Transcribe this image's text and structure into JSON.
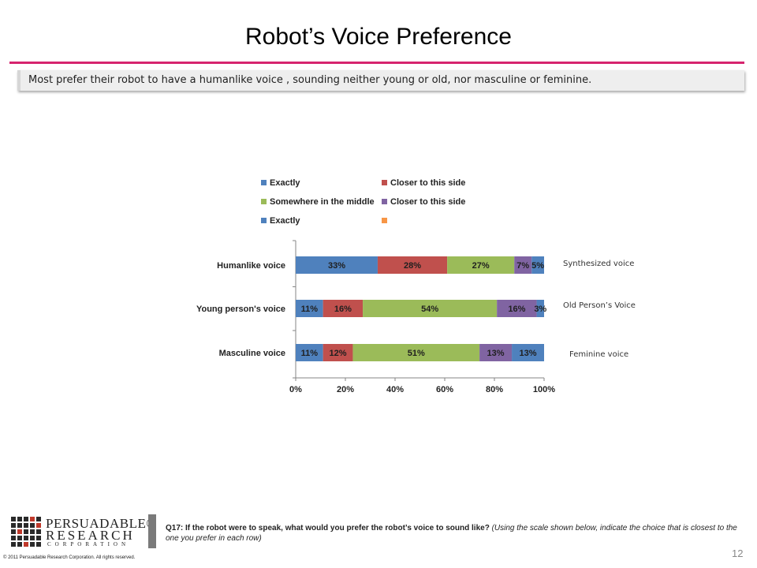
{
  "slide": {
    "title": "Robot’s Voice Preference",
    "summary": "Most prefer their robot to have a humanlike voice , sounding neither young or old, nor masculine or feminine.",
    "page_number": "12",
    "accent_color": "#d6246e"
  },
  "footer": {
    "logo_line1": "PERSUADABLE®",
    "logo_line2": "RESEARCH",
    "logo_line3": "CORPORATION",
    "question_label": "Q17:  If the robot were to speak, what would you prefer the robot’s voice to sound like?",
    "question_instruction": "(Using the scale shown below, indicate the choice that is closest to the one you prefer in each row)",
    "copyright": "© 2011  Persuadable  Research Corporation.   All rights reserved."
  },
  "chart_data": {
    "type": "bar",
    "orientation": "horizontal",
    "stacked": true,
    "percent": true,
    "categories": [
      "Humanlike voice",
      "Young person's voice",
      "Masculine voice"
    ],
    "right_labels": [
      "Synthesized voice",
      "Old Person’s Voice",
      "Feminine voice"
    ],
    "series": [
      {
        "name": "Exactly",
        "color": "#4f81bd",
        "values": [
          33,
          11,
          11
        ],
        "labels": [
          "33%",
          "11%",
          "11%"
        ]
      },
      {
        "name": "Closer to this side",
        "color": "#c0504d",
        "values": [
          28,
          16,
          12
        ],
        "labels": [
          "28%",
          "16%",
          "12%"
        ]
      },
      {
        "name": "Somewhere in the middle",
        "color": "#9bbb59",
        "values": [
          27,
          54,
          51
        ],
        "labels": [
          "27%",
          "54%",
          "51%"
        ]
      },
      {
        "name": "Closer to this side",
        "color": "#8064a2",
        "values": [
          7,
          16,
          13
        ],
        "labels": [
          "7%",
          "16%",
          "13%"
        ]
      },
      {
        "name": "Exactly",
        "color": "#4f81bd",
        "values": [
          5,
          3,
          13
        ],
        "labels": [
          "5%",
          "3%",
          "13%"
        ]
      },
      {
        "name": "",
        "color": "#f79646",
        "values": [
          0,
          0,
          0
        ],
        "labels": [
          "",
          "",
          ""
        ]
      }
    ],
    "xlim": [
      0,
      100
    ],
    "xticks": [
      "0%",
      "20%",
      "40%",
      "60%",
      "80%",
      "100%"
    ],
    "legend_position": "top",
    "grid": false
  }
}
